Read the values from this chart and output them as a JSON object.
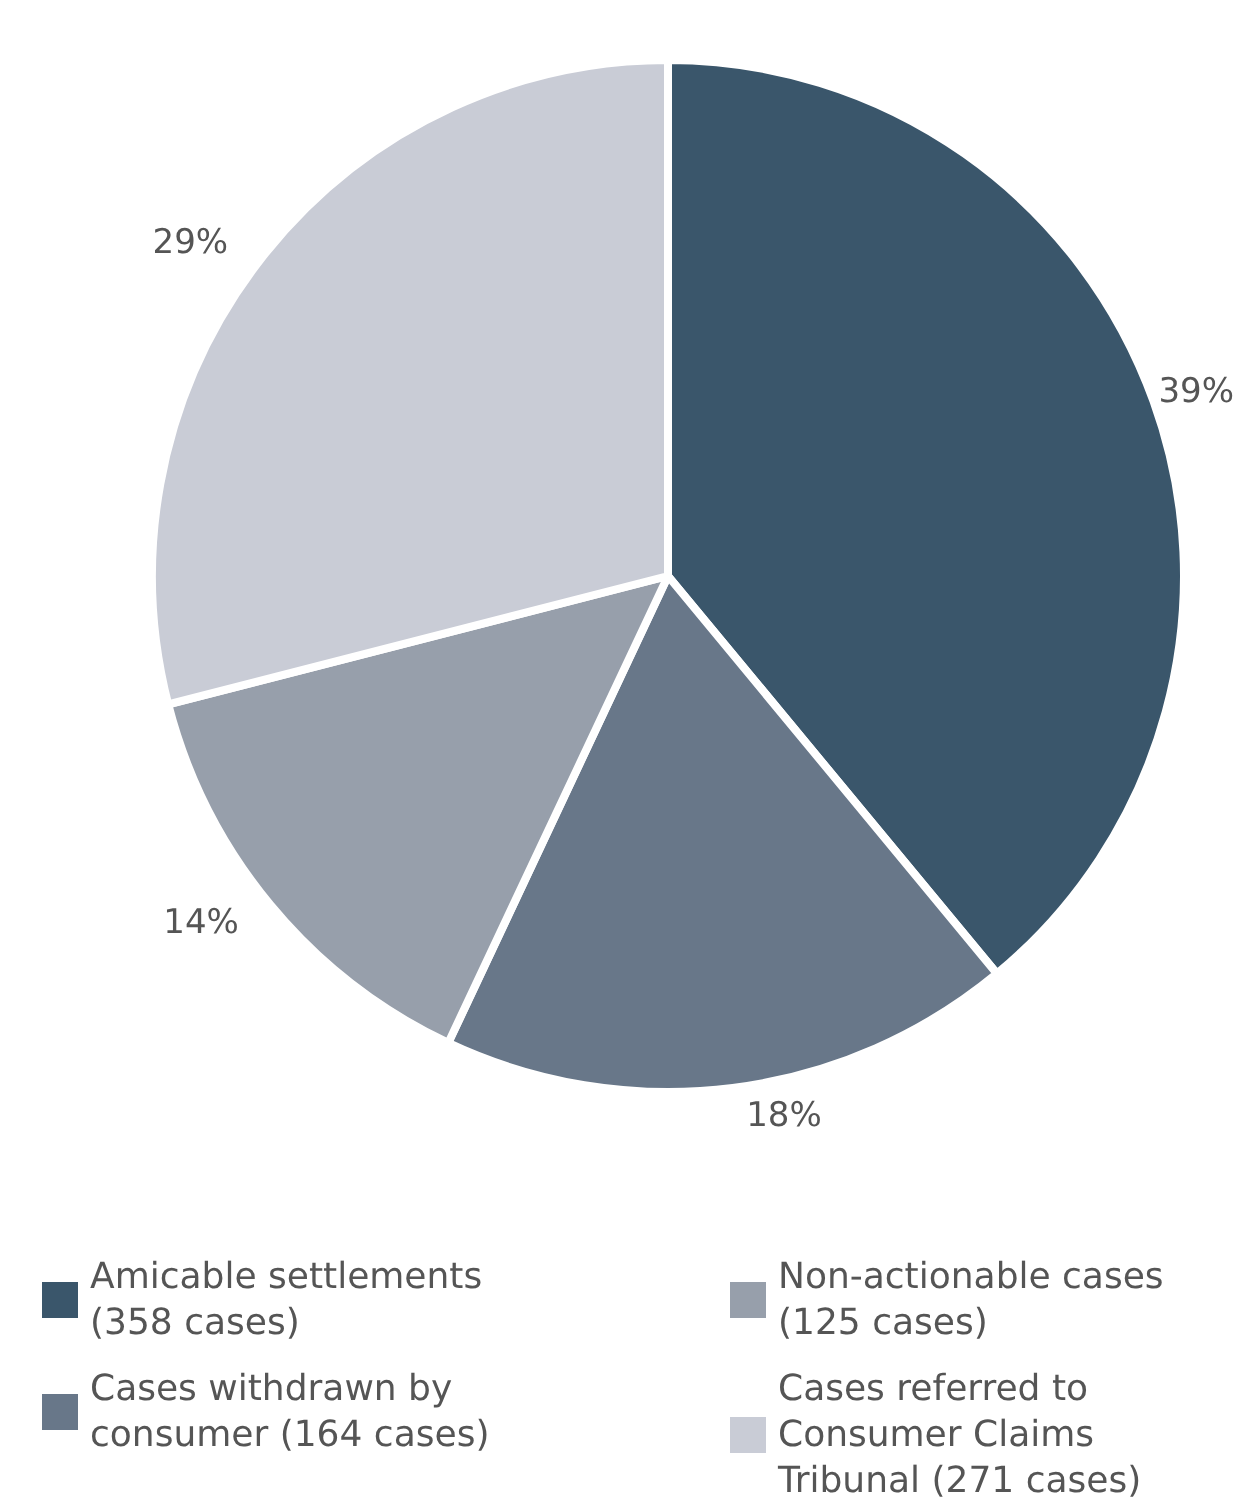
{
  "chart_data": {
    "type": "pie",
    "categories": [
      "Amicable settlements (358 cases)",
      "Cases withdrawn by consumer (164 cases)",
      "Non-actionable cases (125 cases)",
      "Cases referred to Consumer Claims Tribunal (271 cases)"
    ],
    "values": [
      39,
      18,
      14,
      29
    ],
    "value_labels": [
      "39%",
      "18%",
      "14%",
      "29%"
    ],
    "colors": [
      "#3a566b",
      "#687789",
      "#979fab",
      "#c9ccd6"
    ],
    "legend": "bottom"
  }
}
